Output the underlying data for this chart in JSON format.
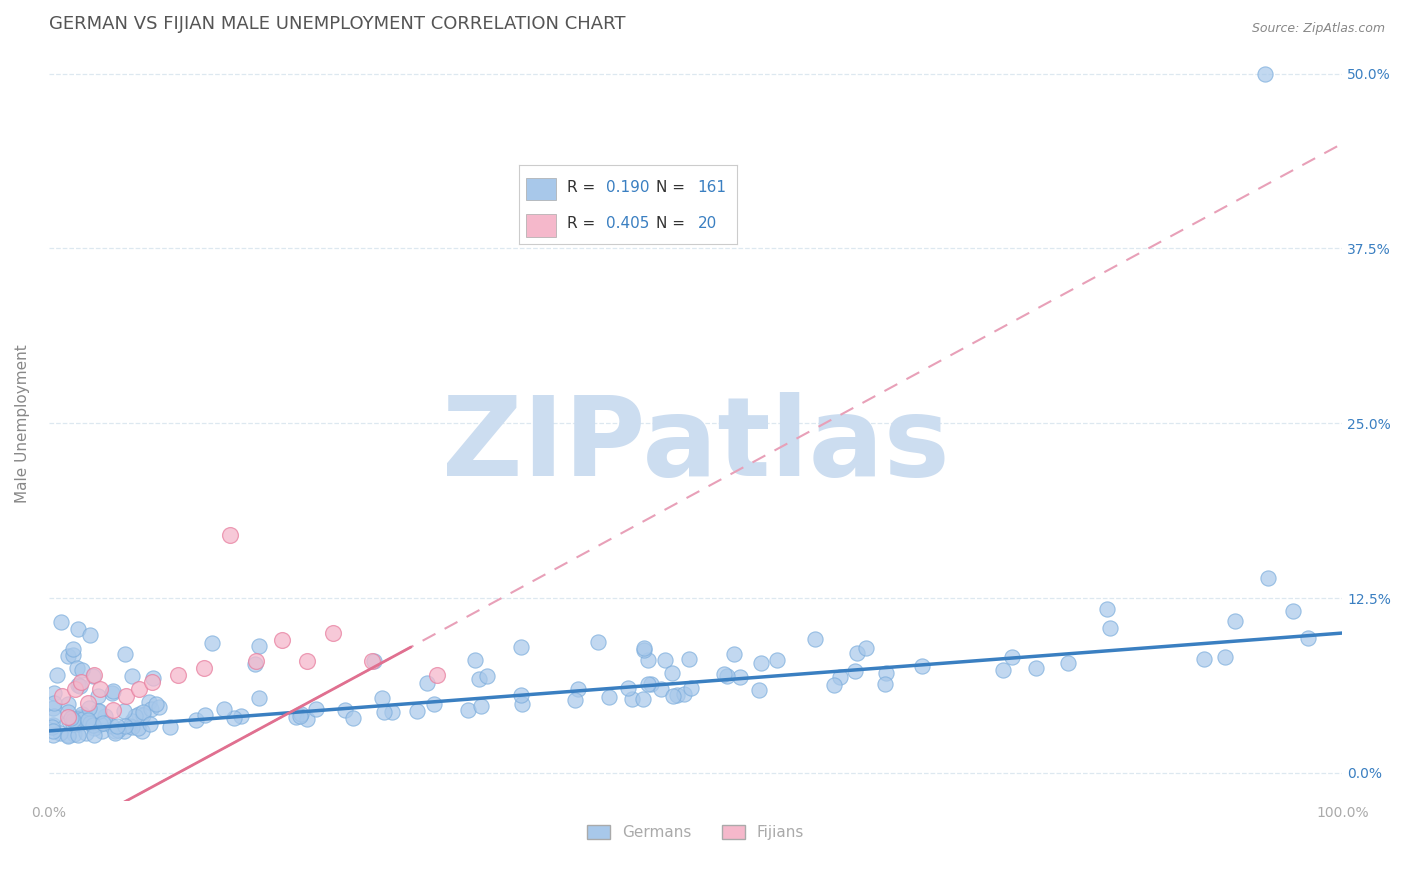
{
  "title": "GERMAN VS FIJIAN MALE UNEMPLOYMENT CORRELATION CHART",
  "source_text": "Source: ZipAtlas.com",
  "ylabel": "Male Unemployment",
  "xlim": [
    0.0,
    1.0
  ],
  "ylim": [
    -0.02,
    0.52
  ],
  "yticks": [
    0.0,
    0.125,
    0.25,
    0.375,
    0.5
  ],
  "ytick_labels": [
    "0.0%",
    "12.5%",
    "25.0%",
    "37.5%",
    "50.0%"
  ],
  "xticks": [
    0.0,
    0.25,
    0.5,
    0.75,
    1.0
  ],
  "xtick_labels": [
    "0.0%",
    "",
    "",
    "",
    "100.0%"
  ],
  "german_R": 0.19,
  "german_N": 161,
  "fijian_R": 0.405,
  "fijian_N": 20,
  "german_color": "#a8c8ea",
  "german_edge_color": "#7aacdc",
  "fijian_color": "#f5b8cb",
  "fijian_edge_color": "#e880a0",
  "german_line_color": "#3a7fc1",
  "fijian_line_color": "#e07090",
  "fijian_dash_color": "#e8a0b8",
  "watermark_text": "ZIPatlas",
  "watermark_color": "#ccddf0",
  "background_color": "#ffffff",
  "title_color": "#555555",
  "title_fontsize": 13,
  "axis_label_color": "#888888",
  "tick_color": "#aaaaaa",
  "grid_color": "#dde8f0",
  "legend_color": "#3a7fc1"
}
